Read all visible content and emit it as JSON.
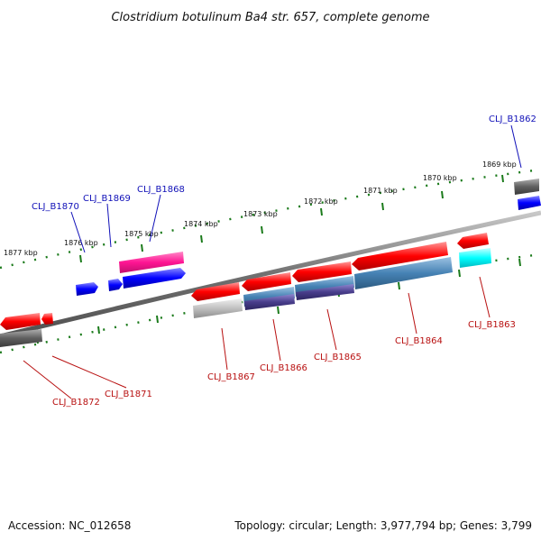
{
  "title": "Clostridium botulinum Ba4 str. 657, complete genome",
  "footer": {
    "accession": "Accession: NC_012658",
    "summary": "Topology: circular; Length: 3,977,794 bp; Genes: 3,799"
  },
  "ticks": [
    "1877 kbp",
    "1876 kbp",
    "1875 kbp",
    "1874 kbp",
    "1873 kbp",
    "1872 kbp",
    "1871 kbp",
    "1870 kbp",
    "1869 kbp"
  ],
  "genes_forward": [
    {
      "label": "CLJ_B1870",
      "color": "#0000ee"
    },
    {
      "label": "CLJ_B1869",
      "color": "#0000ee"
    },
    {
      "label": "CLJ_B1868",
      "color": "#ee0099"
    },
    {
      "label": "CLJ_B1862",
      "color": "#0000ee"
    }
  ],
  "genes_reverse": [
    {
      "label": "CLJ_B1872",
      "color": "#ee0000"
    },
    {
      "label": "CLJ_B1871",
      "color": "#ee0000"
    },
    {
      "label": "CLJ_B1867",
      "color": "#ee0000"
    },
    {
      "label": "CLJ_B1866",
      "color": "#ee0000"
    },
    {
      "label": "CLJ_B1865",
      "color": "#ee0000"
    },
    {
      "label": "CLJ_B1864",
      "color": "#ee0000"
    },
    {
      "label": "CLJ_B1863",
      "color": "#ee0000"
    }
  ],
  "colors": {
    "backbone": "#808080",
    "tick_dots": "#1a7a1a",
    "cds_red": "#ff0000",
    "cds_blue": "#0000ff",
    "cds_magenta": "#ff1493",
    "feature_steel": "#4682b4",
    "feature_purple": "#483d8b",
    "feature_gray": "#c0c0c0",
    "feature_cyan": "#00ffff",
    "feature_darkgray": "#606060"
  }
}
